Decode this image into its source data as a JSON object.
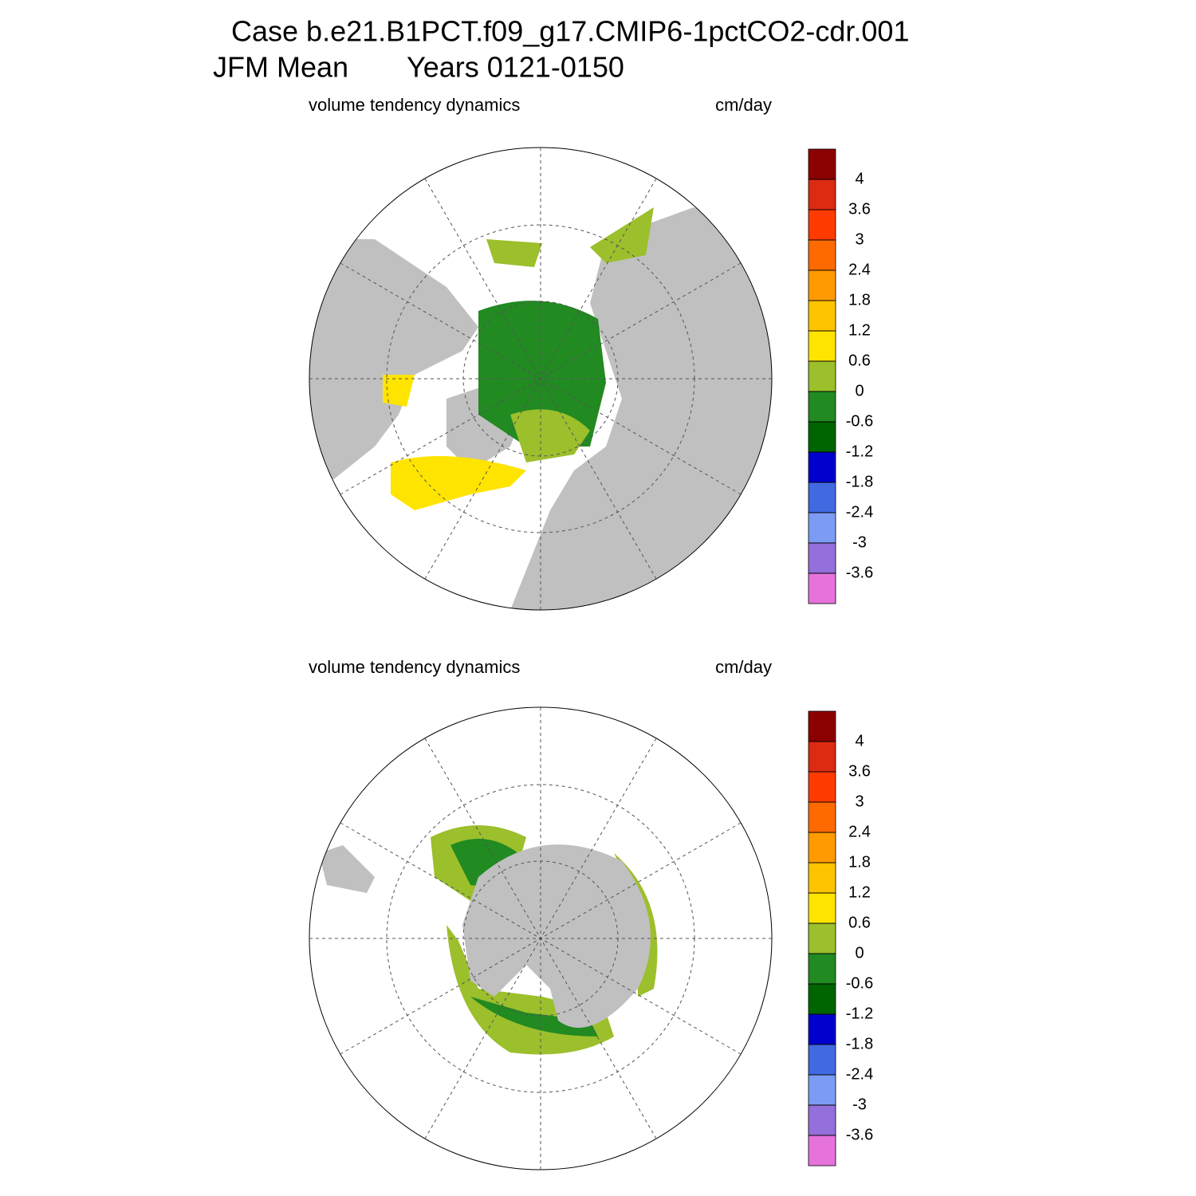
{
  "title": {
    "case": "Case b.e21.B1PCT.f09_g17.CMIP6-1pctCO2-cdr.001",
    "season": "JFM Mean",
    "years": "Years 0121-0150"
  },
  "panels": [
    {
      "left_label": "volume tendency dynamics",
      "right_label": "cm/day"
    },
    {
      "left_label": "volume tendency dynamics",
      "right_label": "cm/day"
    }
  ],
  "colorbar": {
    "colors": [
      "#8b0000",
      "#dd2a12",
      "#ff3a00",
      "#ff6a00",
      "#ff9a00",
      "#ffc400",
      "#ffe400",
      "#9cbf2c",
      "#218a21",
      "#006400",
      "#0000cd",
      "#4169e1",
      "#7b9cf2",
      "#9370db",
      "#e673dc"
    ],
    "ticks": [
      4,
      3.6,
      3,
      2.4,
      1.8,
      1.2,
      0.6,
      0,
      -0.6,
      -1.2,
      -1.8,
      -2.4,
      -3,
      -3.6
    ]
  }
}
